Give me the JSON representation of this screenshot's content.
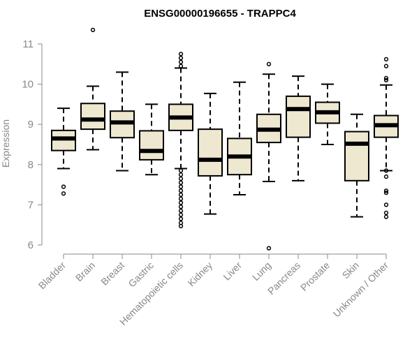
{
  "chart_data": {
    "type": "boxplot",
    "title": "ENSG00000196655 - TRAPPC4",
    "xlabel": "",
    "ylabel": "Expression",
    "ylim": [
      5.75,
      11.3
    ],
    "yticks": [
      6,
      7,
      8,
      9,
      10,
      11
    ],
    "box_color": "#EEE8D0",
    "line_color": "#000000",
    "categories": [
      "Bladder",
      "Brain",
      "Breast",
      "Gastric",
      "Hematopoietic cells",
      "Kidney",
      "Liver",
      "Lung",
      "Pancreas",
      "Prostate",
      "Skin",
      "Unknown / Other"
    ],
    "boxes": [
      {
        "name": "Bladder",
        "whisker_low": 7.9,
        "q1": 8.35,
        "median": 8.65,
        "q3": 8.85,
        "whisker_high": 9.4,
        "outliers": [
          7.45,
          7.28
        ]
      },
      {
        "name": "Brain",
        "whisker_low": 8.37,
        "q1": 8.88,
        "median": 9.12,
        "q3": 9.52,
        "whisker_high": 9.95,
        "outliers": [
          11.35
        ]
      },
      {
        "name": "Breast",
        "whisker_low": 7.85,
        "q1": 8.67,
        "median": 9.05,
        "q3": 9.33,
        "whisker_high": 10.3,
        "outliers": []
      },
      {
        "name": "Gastric",
        "whisker_low": 7.75,
        "q1": 8.12,
        "median": 8.34,
        "q3": 8.84,
        "whisker_high": 9.5,
        "outliers": []
      },
      {
        "name": "Hematopoietic cells",
        "whisker_low": 7.9,
        "q1": 8.85,
        "median": 9.17,
        "q3": 9.5,
        "whisker_high": 10.4,
        "outliers": [
          10.75,
          10.65,
          10.55,
          10.45,
          7.85,
          7.75,
          7.65,
          7.55,
          7.45,
          7.35,
          7.25,
          7.15,
          7.05,
          6.95,
          6.85,
          6.75,
          6.65,
          6.55,
          6.47
        ]
      },
      {
        "name": "Kidney",
        "whisker_low": 6.77,
        "q1": 7.72,
        "median": 8.12,
        "q3": 8.88,
        "whisker_high": 9.77,
        "outliers": []
      },
      {
        "name": "Liver",
        "whisker_low": 7.25,
        "q1": 7.75,
        "median": 8.2,
        "q3": 8.65,
        "whisker_high": 10.05,
        "outliers": []
      },
      {
        "name": "Lung",
        "whisker_low": 7.58,
        "q1": 8.55,
        "median": 8.87,
        "q3": 9.25,
        "whisker_high": 10.25,
        "outliers": [
          10.5,
          5.92
        ]
      },
      {
        "name": "Pancreas",
        "whisker_low": 7.6,
        "q1": 8.68,
        "median": 9.38,
        "q3": 9.7,
        "whisker_high": 10.2,
        "outliers": []
      },
      {
        "name": "Prostate",
        "whisker_low": 8.5,
        "q1": 9.03,
        "median": 9.3,
        "q3": 9.55,
        "whisker_high": 10.0,
        "outliers": []
      },
      {
        "name": "Skin",
        "whisker_low": 6.7,
        "q1": 7.6,
        "median": 8.52,
        "q3": 8.82,
        "whisker_high": 9.25,
        "outliers": []
      },
      {
        "name": "Unknown / Other",
        "whisker_low": 7.85,
        "q1": 8.68,
        "median": 8.98,
        "q3": 9.22,
        "whisker_high": 9.98,
        "outliers": [
          10.62,
          10.45,
          10.15,
          10.1,
          7.85,
          7.7,
          7.35,
          7.3,
          7.0,
          6.8,
          6.7
        ]
      }
    ]
  }
}
